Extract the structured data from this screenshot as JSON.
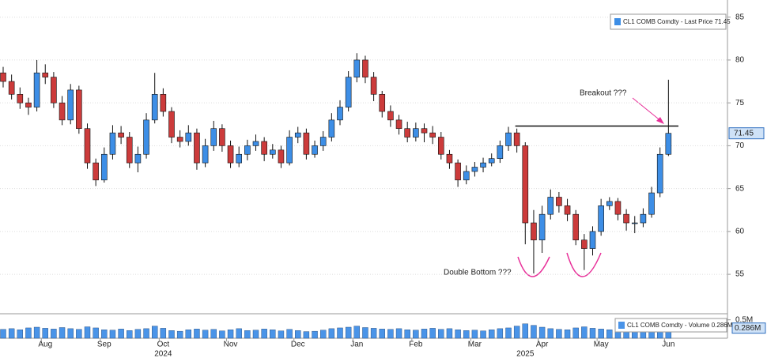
{
  "chart_data": {
    "type": "candlestick",
    "legend": "CL1 COMB Comdty - Last Price 71.45",
    "volume_legend": "CL1 COMB Comdty - Volume 0.286M",
    "last_price": {
      "value": 71.45,
      "label": "71.45"
    },
    "last_volume": {
      "value": 286000,
      "label": "0.286M"
    },
    "annotations": [
      "Breakout ???",
      "Double Bottom ???"
    ],
    "resistance": 72.3,
    "year_labels": [
      "2024",
      "2025"
    ],
    "up_color": "#3d8ee6",
    "down_color": "#cc3b3b",
    "volume_color": "#4a94e8",
    "annotation_color": "#e8319a",
    "grid": true,
    "categories": [
      null,
      null,
      null,
      null,
      null,
      "Aug",
      null,
      null,
      null,
      null,
      null,
      null,
      "Sep",
      null,
      null,
      null,
      null,
      null,
      null,
      "Oct",
      null,
      null,
      null,
      null,
      null,
      null,
      null,
      "Nov",
      null,
      null,
      null,
      null,
      null,
      null,
      null,
      "Dec",
      null,
      null,
      null,
      null,
      null,
      null,
      "Jan",
      null,
      null,
      null,
      null,
      null,
      null,
      "Feb",
      null,
      null,
      null,
      null,
      null,
      null,
      "Mar",
      null,
      null,
      null,
      null,
      null,
      null,
      null,
      "Apr",
      null,
      null,
      null,
      null,
      null,
      null,
      "May",
      null,
      null,
      null,
      null,
      null,
      null,
      null,
      "Jun"
    ],
    "open": [
      78.5,
      77.5,
      76,
      75,
      74.5,
      78.5,
      78,
      75,
      73,
      76.5,
      72,
      68,
      66,
      69,
      71.5,
      71,
      68,
      69,
      73,
      76,
      74,
      71,
      70.5,
      71.5,
      68,
      70,
      72,
      70,
      68,
      69,
      70,
      70.5,
      69,
      69.5,
      68,
      71,
      71.5,
      69,
      70,
      71,
      73,
      74.5,
      78,
      80,
      78,
      76,
      74,
      73,
      72,
      71,
      72,
      71.5,
      71,
      69,
      68,
      66,
      67,
      67.5,
      68,
      68.5,
      70,
      71.5,
      70,
      61,
      59,
      62,
      64,
      63,
      62,
      59,
      58,
      60,
      63,
      63.5,
      62,
      61,
      61,
      62,
      64.5,
      69
    ],
    "high": [
      79.2,
      78.3,
      76.8,
      75.6,
      80,
      79.5,
      78.6,
      75.8,
      77.2,
      77,
      72.6,
      68.5,
      69.8,
      72.4,
      72.3,
      71.6,
      69.9,
      73.8,
      78.5,
      76.7,
      74.5,
      71.8,
      72.4,
      72,
      70.8,
      72.9,
      72.5,
      70.6,
      69.9,
      70.7,
      71.3,
      71,
      70.2,
      70,
      71.8,
      72.2,
      72,
      70.6,
      71.7,
      73.8,
      75.3,
      78.7,
      80.8,
      80.5,
      78.6,
      76.4,
      74.7,
      73.6,
      72.8,
      72.7,
      72.6,
      72.3,
      71.6,
      69.5,
      68.4,
      67.7,
      68.1,
      68.6,
      69.1,
      70.6,
      72.2,
      72,
      70.4,
      62.5,
      63,
      64.9,
      64.6,
      63.8,
      62.5,
      59.7,
      60.6,
      63.8,
      64,
      63.9,
      62.6,
      61.8,
      62.7,
      65.2,
      69.8,
      77.7
    ],
    "low": [
      76.8,
      75.4,
      74.3,
      73.6,
      74,
      77.2,
      74.4,
      72.4,
      72.5,
      71.4,
      67.3,
      65.3,
      65.7,
      68.4,
      70.2,
      67.4,
      66.9,
      68.5,
      72.6,
      73.4,
      70.3,
      69.8,
      70,
      67.2,
      67.5,
      69.4,
      69.3,
      67.4,
      67.5,
      68.3,
      69.4,
      68.2,
      68.5,
      67.4,
      67.7,
      70.3,
      68.4,
      68.6,
      69.4,
      70.5,
      72.4,
      74,
      77.4,
      77.3,
      75.2,
      73.3,
      72.2,
      71.3,
      70.4,
      70.5,
      70.4,
      70.2,
      68.4,
      67.3,
      65.2,
      65.5,
      66.4,
      66.9,
      67.6,
      68,
      69.4,
      69.2,
      58.5,
      55.1,
      57.5,
      61.4,
      62.2,
      61.2,
      58.4,
      55.5,
      57.2,
      59.5,
      62.5,
      61.3,
      60.1,
      59.8,
      60.5,
      61.6,
      64,
      68.8
    ],
    "close": [
      77.5,
      76,
      75,
      74.5,
      78.5,
      78,
      75,
      73,
      76.5,
      72,
      68,
      66,
      69,
      71.5,
      71,
      68,
      69,
      73,
      76,
      74,
      71,
      70.5,
      71.5,
      68,
      70,
      72,
      70,
      68,
      69,
      70,
      70.5,
      69,
      69.5,
      68,
      71,
      71.5,
      69,
      70,
      71,
      73,
      74.5,
      78,
      80,
      78,
      76,
      74,
      73,
      72,
      71,
      72,
      71.5,
      71,
      69,
      68,
      66,
      67,
      67.5,
      68,
      68.5,
      70,
      71.5,
      70,
      61,
      59,
      62,
      64,
      63,
      62,
      59,
      58,
      60,
      63,
      63.5,
      62,
      61,
      61,
      62,
      64.5,
      69,
      71.45
    ],
    "volume": [
      240000,
      260000,
      230000,
      280000,
      300000,
      270000,
      250000,
      290000,
      260000,
      240000,
      310000,
      280000,
      230000,
      220000,
      250000,
      210000,
      240000,
      260000,
      330000,
      270000,
      210000,
      190000,
      230000,
      250000,
      220000,
      240000,
      200000,
      230000,
      260000,
      210000,
      220000,
      250000,
      230000,
      200000,
      240000,
      210000,
      180000,
      190000,
      220000,
      260000,
      280000,
      300000,
      330000,
      290000,
      270000,
      250000,
      240000,
      260000,
      230000,
      220000,
      250000,
      270000,
      240000,
      260000,
      230000,
      210000,
      220000,
      200000,
      230000,
      260000,
      280000,
      330000,
      390000,
      350000,
      300000,
      260000,
      240000,
      230000,
      280000,
      310000,
      270000,
      250000,
      230000,
      220000,
      240000,
      210000,
      230000,
      250000,
      290000,
      286000
    ],
    "ylim": [
      50.4,
      87
    ],
    "yticks": [
      55,
      60,
      65,
      70,
      75,
      80,
      85
    ],
    "vlim": [
      0,
      600000
    ],
    "vticks": [
      {
        "value": 500000,
        "label": "0.5M"
      }
    ]
  }
}
